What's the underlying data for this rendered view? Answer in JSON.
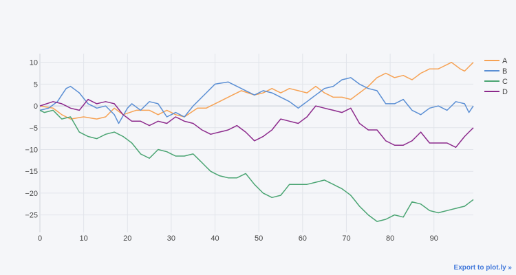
{
  "export_link": {
    "label": "Export to plot.ly »"
  },
  "colors": {
    "background": "#f5f6f9",
    "grid": "#e1e4ea",
    "zero_line": "#cfd4dc",
    "tick_text": "#444444",
    "link": "#447adb"
  },
  "chart_data": {
    "type": "line",
    "title": "",
    "xlabel": "",
    "ylabel": "",
    "xlim": [
      0,
      99
    ],
    "ylim": [
      -29,
      12
    ],
    "grid": true,
    "legend_position": "top-right",
    "x_ticks": [
      0,
      10,
      20,
      30,
      40,
      50,
      60,
      70,
      80,
      90
    ],
    "y_ticks": [
      10,
      5,
      0,
      -5,
      -10,
      -15,
      -20,
      -25
    ],
    "x_tick_labels": [
      "0",
      "10",
      "20",
      "30",
      "40",
      "50",
      "60",
      "70",
      "80",
      "90"
    ],
    "y_tick_labels": [
      "10",
      "5",
      "0",
      "−5",
      "−10",
      "−15",
      "−20",
      "−25"
    ],
    "series": [
      {
        "name": "A",
        "color": "#f6a254",
        "keypoints": [
          [
            0,
            0
          ],
          [
            3,
            -0.5
          ],
          [
            5,
            -2
          ],
          [
            7,
            -3
          ],
          [
            10,
            -2.5
          ],
          [
            13,
            -3
          ],
          [
            15,
            -2.5
          ],
          [
            17,
            -0.5
          ],
          [
            19,
            -2
          ],
          [
            22,
            -1
          ],
          [
            25,
            -1
          ],
          [
            27,
            -2
          ],
          [
            29,
            -1
          ],
          [
            31,
            -2
          ],
          [
            33,
            -2.5
          ],
          [
            36,
            -0.5
          ],
          [
            38,
            -0.5
          ],
          [
            40,
            0.5
          ],
          [
            43,
            2
          ],
          [
            46,
            3.5
          ],
          [
            49,
            2.5
          ],
          [
            51,
            3
          ],
          [
            53,
            4
          ],
          [
            55,
            3
          ],
          [
            57,
            4
          ],
          [
            59,
            3.5
          ],
          [
            61,
            3
          ],
          [
            63,
            4.5
          ],
          [
            65,
            3
          ],
          [
            67,
            2
          ],
          [
            69,
            2
          ],
          [
            71,
            1.5
          ],
          [
            73,
            3
          ],
          [
            75,
            4.5
          ],
          [
            77,
            6.5
          ],
          [
            79,
            7.5
          ],
          [
            81,
            6.5
          ],
          [
            83,
            7
          ],
          [
            85,
            6
          ],
          [
            87,
            7.5
          ],
          [
            89,
            8.5
          ],
          [
            91,
            8.5
          ],
          [
            94,
            10
          ],
          [
            96,
            8.5
          ],
          [
            97,
            8
          ],
          [
            99,
            10
          ]
        ]
      },
      {
        "name": "B",
        "color": "#5b8fd4",
        "keypoints": [
          [
            0,
            -1
          ],
          [
            2,
            -0.5
          ],
          [
            4,
            1
          ],
          [
            6,
            4
          ],
          [
            7,
            4.5
          ],
          [
            9,
            3
          ],
          [
            11,
            0.5
          ],
          [
            13,
            -0.5
          ],
          [
            15,
            0
          ],
          [
            17,
            -2
          ],
          [
            18,
            -4
          ],
          [
            20,
            -0.5
          ],
          [
            21,
            0.5
          ],
          [
            23,
            -1
          ],
          [
            25,
            1
          ],
          [
            27,
            0.5
          ],
          [
            29,
            -2.5
          ],
          [
            31,
            -1.5
          ],
          [
            33,
            -2.5
          ],
          [
            35,
            0
          ],
          [
            38,
            3
          ],
          [
            40,
            5
          ],
          [
            43,
            5.5
          ],
          [
            45,
            4.5
          ],
          [
            47,
            3.5
          ],
          [
            49,
            2.5
          ],
          [
            51,
            3.5
          ],
          [
            53,
            3
          ],
          [
            55,
            2
          ],
          [
            57,
            1
          ],
          [
            59,
            -0.5
          ],
          [
            61,
            1
          ],
          [
            63,
            2.5
          ],
          [
            65,
            4
          ],
          [
            67,
            4.5
          ],
          [
            69,
            6
          ],
          [
            71,
            6.5
          ],
          [
            73,
            5
          ],
          [
            75,
            4
          ],
          [
            77,
            3.5
          ],
          [
            79,
            0.5
          ],
          [
            81,
            0.5
          ],
          [
            83,
            1.5
          ],
          [
            85,
            -1
          ],
          [
            87,
            -2
          ],
          [
            89,
            -0.5
          ],
          [
            91,
            0
          ],
          [
            93,
            -1
          ],
          [
            95,
            1
          ],
          [
            97,
            0.5
          ],
          [
            98,
            -1.5
          ],
          [
            99,
            0
          ]
        ]
      },
      {
        "name": "C",
        "color": "#4aa472",
        "keypoints": [
          [
            0,
            -1
          ],
          [
            1,
            -1.5
          ],
          [
            3,
            -1
          ],
          [
            5,
            -3
          ],
          [
            7,
            -2.5
          ],
          [
            9,
            -6
          ],
          [
            11,
            -7
          ],
          [
            13,
            -7.5
          ],
          [
            15,
            -6.5
          ],
          [
            17,
            -6
          ],
          [
            19,
            -7
          ],
          [
            21,
            -8.5
          ],
          [
            23,
            -11
          ],
          [
            25,
            -12
          ],
          [
            27,
            -10
          ],
          [
            29,
            -10.5
          ],
          [
            31,
            -11.5
          ],
          [
            33,
            -11.5
          ],
          [
            35,
            -11
          ],
          [
            37,
            -13
          ],
          [
            39,
            -15
          ],
          [
            41,
            -16
          ],
          [
            43,
            -16.5
          ],
          [
            45,
            -16.5
          ],
          [
            47,
            -15.5
          ],
          [
            49,
            -18
          ],
          [
            51,
            -20
          ],
          [
            53,
            -21
          ],
          [
            55,
            -20.5
          ],
          [
            57,
            -18
          ],
          [
            59,
            -18
          ],
          [
            61,
            -18
          ],
          [
            63,
            -17.5
          ],
          [
            65,
            -17
          ],
          [
            67,
            -18
          ],
          [
            69,
            -19
          ],
          [
            71,
            -20.5
          ],
          [
            73,
            -23
          ],
          [
            75,
            -25
          ],
          [
            77,
            -26.5
          ],
          [
            79,
            -26
          ],
          [
            81,
            -25
          ],
          [
            83,
            -25.5
          ],
          [
            85,
            -22
          ],
          [
            87,
            -22.5
          ],
          [
            89,
            -24
          ],
          [
            91,
            -24.5
          ],
          [
            93,
            -24
          ],
          [
            95,
            -23.5
          ],
          [
            97,
            -23
          ],
          [
            99,
            -21.5
          ]
        ]
      },
      {
        "name": "D",
        "color": "#8c2a8c",
        "keypoints": [
          [
            0,
            0
          ],
          [
            3,
            1
          ],
          [
            5,
            0.5
          ],
          [
            7,
            -0.5
          ],
          [
            9,
            -1
          ],
          [
            11,
            1.5
          ],
          [
            13,
            0.5
          ],
          [
            15,
            1
          ],
          [
            17,
            0.5
          ],
          [
            19,
            -2
          ],
          [
            21,
            -3.5
          ],
          [
            23,
            -3.5
          ],
          [
            25,
            -4.5
          ],
          [
            27,
            -3.5
          ],
          [
            29,
            -4
          ],
          [
            31,
            -2.5
          ],
          [
            33,
            -3.5
          ],
          [
            35,
            -4
          ],
          [
            37,
            -5.5
          ],
          [
            39,
            -6.5
          ],
          [
            41,
            -6
          ],
          [
            43,
            -5.5
          ],
          [
            45,
            -4.5
          ],
          [
            47,
            -6
          ],
          [
            49,
            -8
          ],
          [
            51,
            -7
          ],
          [
            53,
            -5.5
          ],
          [
            55,
            -3
          ],
          [
            57,
            -3.5
          ],
          [
            59,
            -4
          ],
          [
            61,
            -2.5
          ],
          [
            63,
            0
          ],
          [
            65,
            -0.5
          ],
          [
            67,
            -1
          ],
          [
            69,
            -1.5
          ],
          [
            71,
            -0.5
          ],
          [
            73,
            -4
          ],
          [
            75,
            -5.5
          ],
          [
            77,
            -5.5
          ],
          [
            79,
            -8
          ],
          [
            81,
            -9
          ],
          [
            83,
            -9
          ],
          [
            85,
            -8
          ],
          [
            87,
            -6
          ],
          [
            89,
            -8.5
          ],
          [
            91,
            -8.5
          ],
          [
            93,
            -8.5
          ],
          [
            95,
            -9.5
          ],
          [
            97,
            -7
          ],
          [
            99,
            -5
          ]
        ]
      }
    ]
  }
}
